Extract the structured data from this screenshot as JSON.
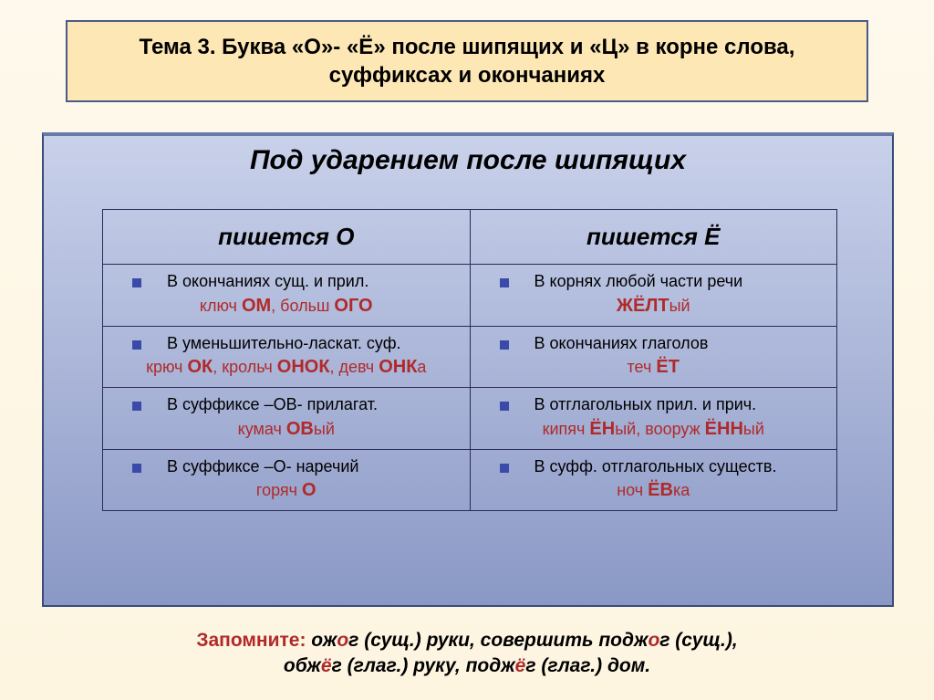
{
  "header": "Тема 3. Буква «О»- «Ё» после шипящих и «Ц» в корне слова, суффиксах и окончаниях",
  "subtitle": "Под ударением после шипящих",
  "columns": {
    "left": "пишется  О",
    "right": "пишется  Ё"
  },
  "rows": [
    {
      "left": {
        "text": "В окончаниях сущ. и прил.",
        "ex_pre1": "ключ ",
        "ex_hl1": "ОМ",
        "ex_mid": ", больш ",
        "ex_hl2": "ОГО",
        "ex_post": ""
      },
      "right": {
        "text": "В корнях любой части речи",
        "ex_pre1": "",
        "ex_hl1": "ЖЁЛТ",
        "ex_mid": "",
        "ex_hl2": "",
        "ex_post": "ый"
      }
    },
    {
      "left": {
        "text": "В уменьшительно-ласкат. суф.",
        "ex_pre1": "крюч ",
        "ex_hl1": "ОК",
        "ex_mid": ", крольч ",
        "ex_hl2": "ОНОК",
        "ex_post": ", девч ",
        "ex_hl3": "ОНК",
        "ex_post2": "а"
      },
      "right": {
        "text": "В окончаниях глаголов",
        "ex_pre1": "теч ",
        "ex_hl1": "ЁТ",
        "ex_mid": "",
        "ex_hl2": "",
        "ex_post": ""
      }
    },
    {
      "left": {
        "text": "В суффиксе –ОВ-  прилагат.",
        "ex_pre1": "кумач ",
        "ex_hl1": "ОВ",
        "ex_mid": "",
        "ex_hl2": "",
        "ex_post": "ый"
      },
      "right": {
        "text": "В отглагольных прил. и прич.",
        "ex_pre1": "кипяч ",
        "ex_hl1": "ЁН",
        "ex_mid": "ый, вооруж ",
        "ex_hl2": "ЁНН",
        "ex_post": "ый"
      }
    },
    {
      "left": {
        "text": "В суффиксе –О- наречий",
        "ex_pre1": "горяч ",
        "ex_hl1": "О",
        "ex_mid": "",
        "ex_hl2": "",
        "ex_post": ""
      },
      "right": {
        "text": "В суфф. отглагольных существ.",
        "ex_pre1": "ноч ",
        "ex_hl1": "ЁВ",
        "ex_mid": "",
        "ex_hl2": "",
        "ex_post": "ка"
      }
    }
  ],
  "footnote": {
    "label": "Запомните:",
    "l1a": " ож",
    "l1o": "о",
    "l1b": "г (сущ.) руки, совершить подж",
    "l1o2": "о",
    "l1c": "г (сущ.),",
    "l2a": "обж",
    "l2e": "ё",
    "l2b": "г (глаг.) руку, подж",
    "l2e2": "ё",
    "l2c": "г (глаг.) дом."
  },
  "colors": {
    "header_bg": "#fde7b5",
    "header_border": "#4a5a8a",
    "panel_grad_top": "#c9d1ea",
    "panel_grad_bot": "#8a98c5",
    "bullet": "#3a4aa8",
    "accent_red": "#b02a2a",
    "table_border": "#2a2a5a"
  },
  "typography": {
    "header_fontsize": 24,
    "subtitle_fontsize": 30,
    "th_fontsize": 26,
    "body_fontsize": 18,
    "footnote_fontsize": 21
  }
}
